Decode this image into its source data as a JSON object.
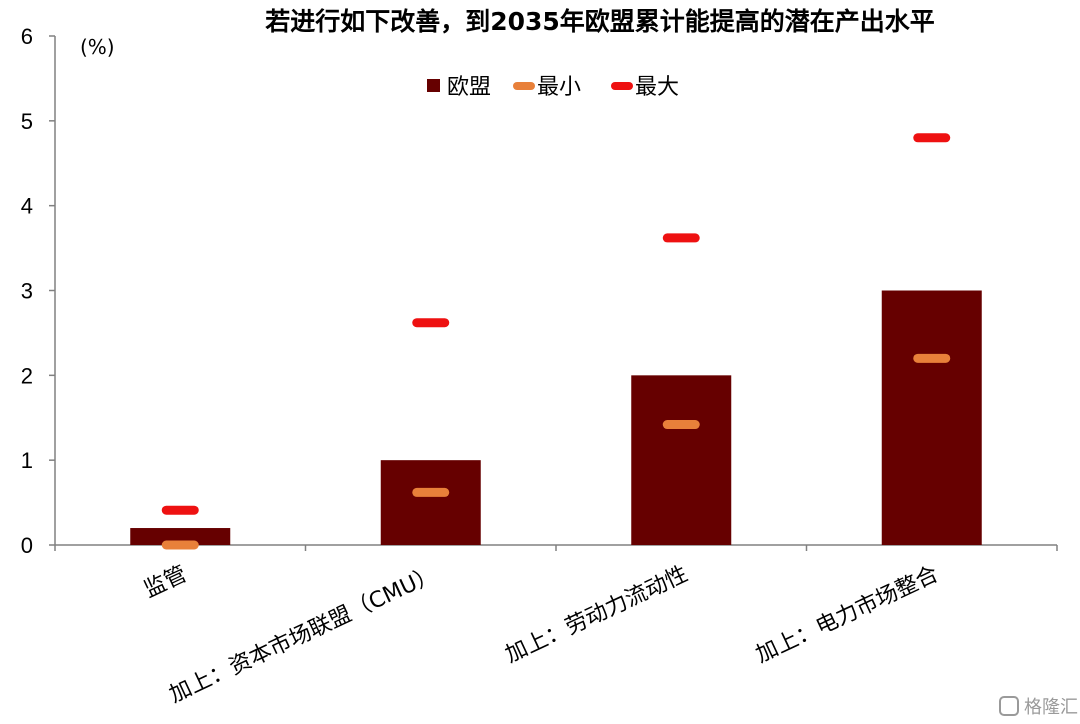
{
  "chart_data": {
    "type": "bar",
    "title": "若进行如下改善，到2035年欧盟累计能提高的潜在产出水平",
    "ylabel": "(%)",
    "ylim": [
      0,
      6
    ],
    "yticks": [
      0,
      1,
      2,
      3,
      4,
      5,
      6
    ],
    "categories": [
      "监管",
      "加上：资本市场联盟（CMU）",
      "加上：劳动力流动性",
      "加上：电力市场整合"
    ],
    "series": [
      {
        "name": "欧盟",
        "kind": "bar",
        "color": "#660000",
        "values": [
          0.2,
          1.0,
          2.0,
          3.0
        ]
      },
      {
        "name": "最小",
        "kind": "marker",
        "color": "#e8803a",
        "values": [
          0.0,
          0.62,
          1.42,
          2.2
        ]
      },
      {
        "name": "最大",
        "kind": "marker",
        "color": "#ee1111",
        "values": [
          0.41,
          2.62,
          3.62,
          4.8
        ]
      }
    ],
    "legend_position": "top-center",
    "grid": false
  },
  "watermark": "格隆汇"
}
